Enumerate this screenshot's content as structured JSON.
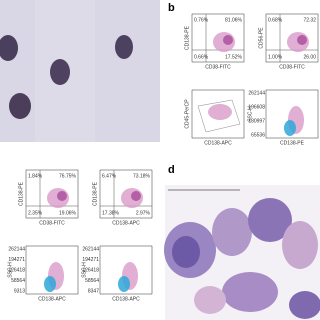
{
  "panel_labels": [
    "b",
    "d"
  ],
  "plots": [
    {
      "y_label": "CD138-PE",
      "x_label": "CD38-FITC",
      "quadrants": [
        "0.76%",
        "81.06%",
        "0.66%",
        "17.52%"
      ]
    },
    {
      "y_label": "CD56-PE",
      "x_label": "CD38-FITC",
      "quadrants": [
        "0.68%",
        "72.32",
        "1.00%",
        "26.00"
      ]
    },
    {
      "y_label": "CD45-PerCP",
      "x_label": "CD138-APC"
    },
    {
      "y_label": "SSC-H",
      "x_label": "CD138-PE",
      "yticks": [
        262144,
        196608,
        130997,
        65536
      ]
    },
    {
      "y_label": "CD138-PE",
      "x_label": "CD38-FITC",
      "quadrants": [
        "1.84%",
        "76.75%",
        "2.35%",
        "19.06%"
      ]
    },
    {
      "y_label": "CD138-PE",
      "x_label": "CD138-APC",
      "quadrants": [
        "6.47%",
        "73.18%",
        "17.38%",
        "2.97%"
      ]
    },
    {
      "y_label": "SSC-H",
      "x_label": "CD138-APC",
      "yticks": [
        262144,
        194271,
        126418,
        58564,
        9313
      ]
    },
    {
      "y_label": "SSC-H",
      "x_label": "CD138-APC",
      "yticks": [
        262144,
        194271,
        126418,
        58564,
        8347
      ]
    }
  ]
}
